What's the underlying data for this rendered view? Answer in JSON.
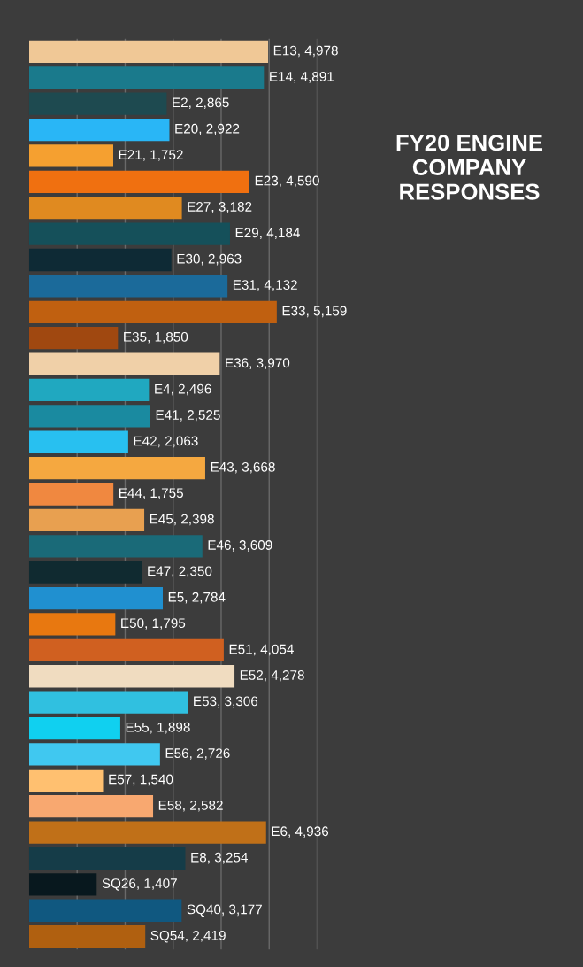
{
  "chart_data": {
    "type": "bar",
    "orientation": "horizontal",
    "title": "FY20 ENGINE\nCOMPANY\nRESPONSES",
    "categories": [
      null,
      null,
      null,
      null,
      null,
      null,
      null,
      null,
      null,
      null,
      null,
      null,
      null,
      null,
      null,
      null,
      null,
      null,
      null,
      null,
      null,
      null,
      null,
      null,
      null,
      null,
      null,
      null,
      null,
      null,
      null,
      null,
      null,
      null,
      null
    ],
    "values": [
      4978,
      4891,
      2865,
      2922,
      1752,
      4590,
      3182,
      4184,
      2963,
      4132,
      5159,
      1850,
      3970,
      2496,
      2525,
      2063,
      3668,
      1755,
      2398,
      3609,
      2350,
      2784,
      1795,
      4054,
      4278,
      3306,
      1898,
      2726,
      1540,
      2582,
      4936,
      3254,
      1407,
      3177,
      2419
    ],
    "value_labels": [
      "E13, 4,978",
      "E14, 4,891",
      "E2, 2,865",
      "E20, 2,922",
      "E21, 1,752",
      "E23, 4,590",
      "E27, 3,182",
      "E29, 4,184",
      "E30, 2,963",
      "E31, 4,132",
      "E33, 5,159",
      "E35, 1,850",
      "E36, 3,970",
      "E4, 2,496",
      "E41, 2,525",
      "E42, 2,063",
      "E43, 3,668",
      "E44, 1,755",
      "E45, 2,398",
      "E46, 3,609",
      "E47, 2,350",
      "E5, 2,784",
      "E50, 1,795",
      "E51, 4,054",
      "E52, 4,278",
      "E53, 3,306",
      "E55, 1,898",
      "E56, 2,726",
      "E57, 1,540",
      "E58, 2,582",
      "E6, 4,936",
      "E8, 3,254",
      "SQ26, 1,407",
      "SQ40, 3,177",
      "SQ54, 2,419"
    ],
    "colors": [
      "#f0c896",
      "#1a7a8c",
      "#1e4a50",
      "#29b6f6",
      "#f5a030",
      "#f07010",
      "#e08a20",
      "#15505a",
      "#0e2a35",
      "#1b6a9a",
      "#c06010",
      "#a04810",
      "#f0d0a8",
      "#20a8c0",
      "#1a8aa0",
      "#28c0f0",
      "#f5a840",
      "#f08840",
      "#e8a050",
      "#1a6a78",
      "#102a30",
      "#2090d0",
      "#e87810",
      "#d06020",
      "#f0dcc0",
      "#30c0e0",
      "#10d0f0",
      "#40c8f0",
      "#ffc070",
      "#f8a870",
      "#c07018",
      "#153c48",
      "#08181e",
      "#105880",
      "#b06010"
    ],
    "xticks": [
      {
        "value": 1000,
        "label": null
      },
      {
        "value": 2000,
        "label": null
      },
      {
        "value": 3000,
        "label": null
      },
      {
        "value": 4000,
        "label": null
      },
      {
        "value": 5000,
        "label": null
      },
      {
        "value": 6000,
        "label": null
      }
    ],
    "grid": "x"
  }
}
